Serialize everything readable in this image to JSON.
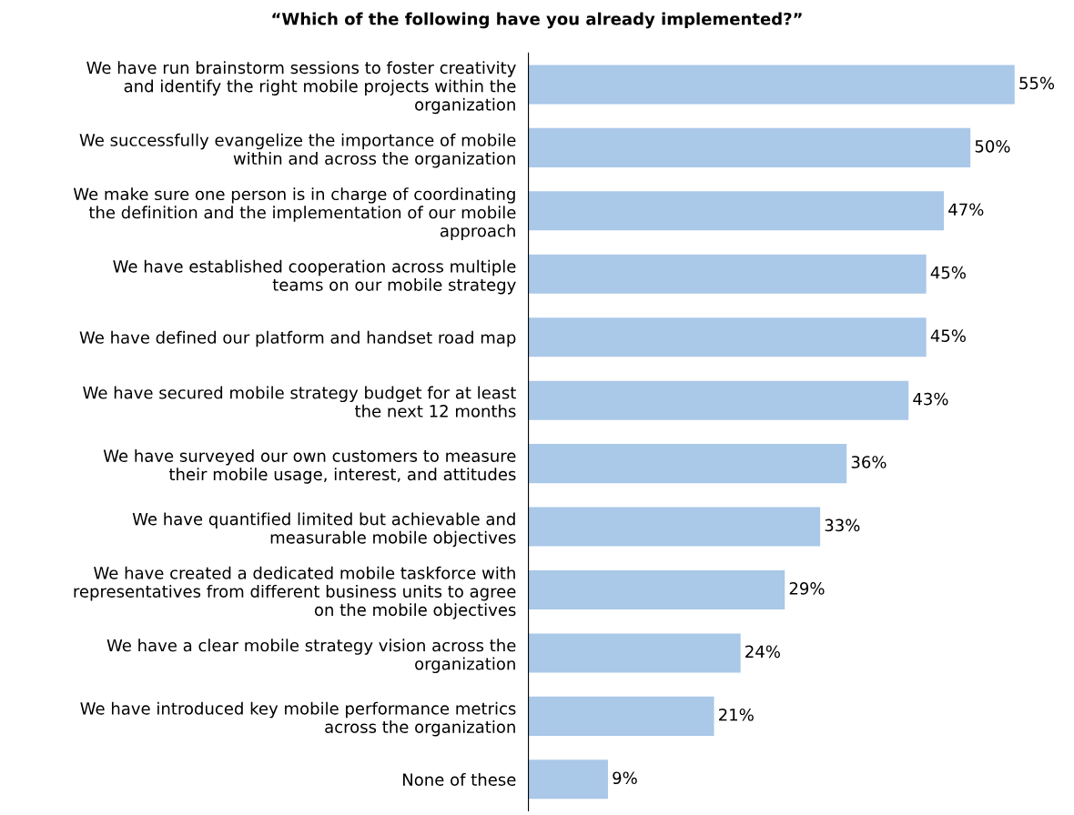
{
  "chart_data": {
    "type": "bar",
    "orientation": "horizontal",
    "title": "“Which of the following have you already implemented?”",
    "categories": [
      "We have run brainstorm sessions to foster creativity\nand identify the right mobile projects within the\norganization",
      "We successfully evangelize the importance of mobile\nwithin and across the organization",
      "We make sure one person is in charge of coordinating\nthe definition and the implementation of our mobile\napproach",
      "We have established cooperation across multiple\nteams on our mobile strategy",
      "We have defined our platform and handset road map",
      "We have secured mobile strategy budget for at least\nthe next 12 months",
      "We have surveyed our own customers to measure\ntheir mobile usage, interest, and attitudes",
      "We have quantified limited but achievable and\nmeasurable mobile objectives",
      "We have created a dedicated mobile taskforce with\nrepresentatives from different business units to agree\non the mobile objectives",
      "We have a clear mobile strategy vision across the\norganization",
      "We have introduced key mobile performance metrics\nacross the organization",
      "None of these"
    ],
    "values": [
      55,
      50,
      47,
      45,
      45,
      43,
      36,
      33,
      29,
      24,
      21,
      9
    ],
    "value_labels": [
      "55%",
      "50%",
      "47%",
      "45%",
      "45%",
      "43%",
      "36%",
      "33%",
      "29%",
      "24%",
      "21%",
      "9%"
    ],
    "color": "#aac8e8",
    "tick_labels": "y",
    "grid": false,
    "legend": false
  }
}
